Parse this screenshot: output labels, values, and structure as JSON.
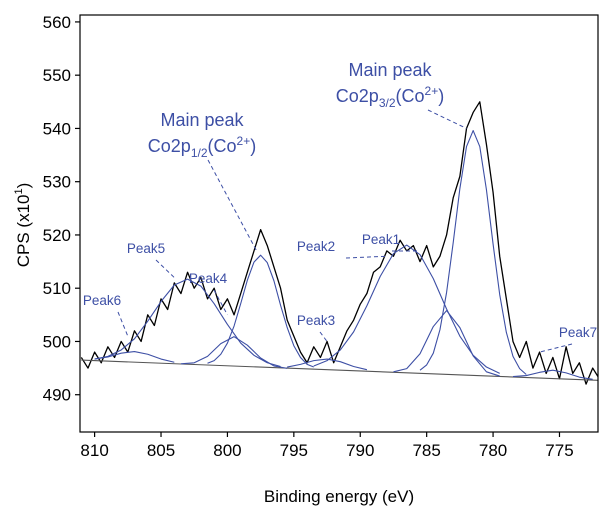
{
  "chart_data": {
    "type": "line",
    "x_label": "Binding energy (eV)",
    "y_label_parts": [
      "CPS (x10",
      "1",
      ")"
    ],
    "xlim": [
      811.1,
      772.1
    ],
    "ylim": [
      483,
      561.3
    ],
    "xticks": [
      810,
      805,
      800,
      795,
      790,
      785,
      780,
      775
    ],
    "yticks": [
      490,
      500,
      510,
      520,
      530,
      540,
      550,
      560
    ],
    "series": [
      {
        "color": "#000000",
        "x": [
          811,
          810.5,
          810,
          809.5,
          809,
          808.5,
          808,
          807.5,
          807,
          806.5,
          806,
          805.5,
          805,
          804.5,
          804,
          803.5,
          803,
          802.5,
          802,
          801.5,
          801,
          800.5,
          800,
          799.5,
          799,
          798.5,
          798,
          797.5,
          797,
          796.5,
          796,
          795.5,
          795,
          794.5,
          794,
          793.5,
          793,
          792.5,
          792,
          791.5,
          791,
          790.5,
          790,
          789.5,
          789,
          788.5,
          788,
          787.5,
          787,
          786.5,
          786,
          785.5,
          785,
          784.5,
          784,
          783.5,
          783,
          782.5,
          782,
          781.5,
          781,
          780.5,
          780,
          779.5,
          779,
          778.5,
          778,
          777.5,
          777,
          776.5,
          776,
          775.5,
          775,
          774.5,
          774,
          773.5,
          773,
          772.5,
          772
        ],
        "values": [
          497,
          495,
          498,
          496,
          499,
          497,
          500,
          498,
          502,
          500,
          505,
          503,
          508,
          506,
          511,
          509,
          513,
          510,
          512,
          508,
          510,
          506,
          508,
          505,
          509,
          513,
          517,
          521,
          518,
          514,
          510,
          504,
          501,
          498,
          496,
          499,
          497,
          500,
          496,
          499,
          502,
          504,
          507,
          509,
          513,
          514,
          517,
          516,
          519,
          517,
          518,
          515,
          518,
          514,
          516,
          520,
          527,
          531,
          540,
          543,
          545,
          537,
          528,
          516,
          508,
          500,
          497,
          500,
          495,
          498,
          494,
          497,
          493,
          499,
          494,
          496,
          492,
          495,
          493
        ]
      },
      {
        "color": "#555555",
        "x": [
          811,
          772
        ],
        "values": [
          496.5,
          492.7
        ]
      },
      {
        "color": "#3d4fa5",
        "label": "Peak6",
        "x": [
          810,
          809,
          808,
          807,
          806,
          805,
          804
        ],
        "values": [
          496.7,
          497.1,
          497.8,
          498.1,
          497.6,
          496.7,
          496.1
        ]
      },
      {
        "color": "#3d4fa5",
        "label": "Peak5",
        "x": [
          810,
          809,
          808,
          807,
          806,
          805,
          804,
          803,
          802,
          801,
          800,
          799,
          798,
          797,
          796
        ],
        "values": [
          496.7,
          497.2,
          498.4,
          500.5,
          503.8,
          507.5,
          510.6,
          511.7,
          510.4,
          507.1,
          503.2,
          499.7,
          497.4,
          496.0,
          495.3
        ]
      },
      {
        "color": "#3d4fa5",
        "label": "Peak4",
        "x": [
          803.5,
          802.5,
          801.5,
          800.5,
          799.5,
          798.5,
          797.5,
          796.5,
          795.5
        ],
        "values": [
          495.8,
          496.0,
          497.2,
          499.6,
          500.9,
          499.3,
          496.9,
          495.4,
          494.95
        ]
      },
      {
        "color": "#3d4fa5",
        "label": "Main peak",
        "sublabel": [
          "Co2p",
          "1/2",
          "(Co",
          "2+",
          ")"
        ],
        "x": [
          801.5,
          801,
          800.5,
          800,
          799.5,
          799,
          798.5,
          798,
          797.5,
          797,
          796.5,
          796,
          795.5,
          795,
          794.5,
          794,
          793.5
        ],
        "values": [
          495.9,
          496.4,
          497.6,
          499.7,
          502.9,
          507.1,
          511.5,
          514.9,
          516.2,
          514.8,
          511.4,
          506.8,
          502.6,
          499.2,
          497.0,
          495.7,
          495.2
        ]
      },
      {
        "color": "#3d4fa5",
        "label": "Peak3",
        "x": [
          795.5,
          794.5,
          793.5,
          792.5,
          791.5,
          790.5,
          789.5
        ],
        "values": [
          495.2,
          495.7,
          496.4,
          496.7,
          496.2,
          495.3,
          494.7
        ]
      },
      {
        "color": "#3d4fa5",
        "label": "Peak2",
        "x": [
          793.5,
          792.5,
          791.5,
          790.5,
          789.5,
          788.5,
          787.5,
          786.5,
          785.5,
          784.5,
          783.5,
          782.5,
          781.5,
          780.5,
          779.5
        ],
        "values": [
          495.4,
          496.4,
          498.4,
          501.8,
          506.7,
          512.2,
          516.5,
          518.1,
          516.3,
          511.8,
          506.1,
          501.0,
          497.4,
          495.2,
          494.0
        ]
      },
      {
        "color": "#3d4fa5",
        "label": "Peak1",
        "x": [
          787.5,
          786.5,
          785.5,
          784.5,
          783.5,
          782.5,
          781.5,
          780.5,
          779.5
        ],
        "values": [
          494.3,
          494.9,
          497.7,
          502.8,
          505.8,
          502.6,
          497.3,
          494.3,
          493.5
        ]
      },
      {
        "color": "#3d4fa5",
        "label": "Main peak",
        "sublabel": [
          "Co2p",
          "3/2",
          "(Co",
          "2+",
          ")"
        ],
        "x": [
          785.5,
          785,
          784.5,
          784,
          783.5,
          783,
          782.5,
          782,
          781.5,
          781,
          780.5,
          780,
          779.5,
          779,
          778.5,
          778,
          777.5
        ],
        "values": [
          494.6,
          495.6,
          497.8,
          502.2,
          509.2,
          518.6,
          528.7,
          536.6,
          539.6,
          536.6,
          528.5,
          518.3,
          508.8,
          501.7,
          497.2,
          494.9,
          493.8
        ]
      },
      {
        "color": "#3d4fa5",
        "label": "Peak7",
        "x": [
          778.5,
          777.5,
          776.5,
          775.5,
          774.5,
          773.5,
          772.5
        ],
        "values": [
          493.4,
          493.6,
          494.2,
          494.6,
          494.1,
          493.3,
          492.9
        ]
      }
    ]
  }
}
